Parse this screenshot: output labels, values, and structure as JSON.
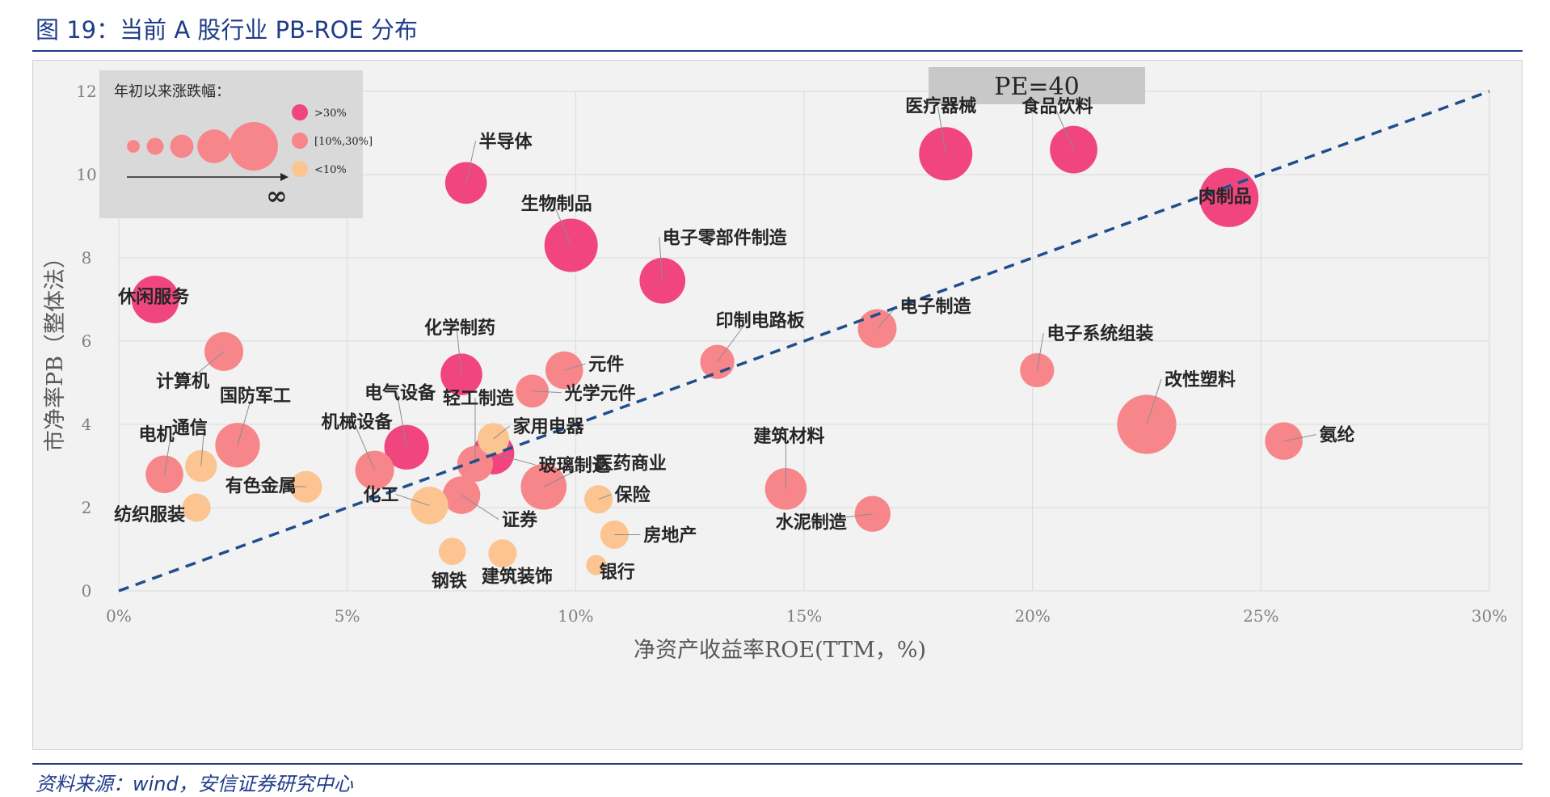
{
  "title": "图 19：当前 A 股行业 PB-ROE 分布",
  "source": "资料来源：wind，安信证券研究中心",
  "colors": {
    "gt30": "#f0457f",
    "mid": "#f7868a",
    "lt10": "#fbc490",
    "frame": "#1f3c88",
    "pe_line": "#1f4e8c",
    "legend_bg": "#d9d9d9",
    "pe_box": "#c8c8c8"
  },
  "chart_data": {
    "type": "bubble",
    "xlabel": "净资产收益率ROE(TTM，%)",
    "ylabel": "市净率PB（整体法）",
    "xlim": [
      0,
      30
    ],
    "ylim": [
      0,
      12
    ],
    "xticks": [
      "0%",
      "5%",
      "10%",
      "15%",
      "20%",
      "25%",
      "30%"
    ],
    "yticks": [
      "0",
      "2",
      "4",
      "6",
      "8",
      "10",
      "12"
    ],
    "grid": true,
    "pe_line": {
      "label": "PE=40",
      "from": [
        0,
        0
      ],
      "to": [
        30,
        12
      ],
      "style": "dashed"
    },
    "legend": {
      "title": "年初以来涨跌幅：",
      "size_symbol": "∞",
      "categories": [
        {
          "key": "gt30",
          "label": ">30%"
        },
        {
          "key": "mid",
          "label": "[10%,30%]"
        },
        {
          "key": "lt10",
          "label": "<10%"
        }
      ],
      "size_scale": [
        0.15,
        0.25,
        0.4,
        0.65,
        1.0
      ]
    },
    "points": [
      {
        "name": "休闲服务",
        "x": 0.8,
        "y": 7.0,
        "size": 0.65,
        "cat": "gt30"
      },
      {
        "name": "半导体",
        "x": 7.6,
        "y": 9.8,
        "size": 0.55,
        "cat": "gt30"
      },
      {
        "name": "生物制品",
        "x": 9.9,
        "y": 8.3,
        "size": 0.75,
        "cat": "gt30"
      },
      {
        "name": "电子零部件制造",
        "x": 11.9,
        "y": 7.45,
        "size": 0.62,
        "cat": "gt30"
      },
      {
        "name": "医疗器械",
        "x": 18.1,
        "y": 10.5,
        "size": 0.75,
        "cat": "gt30"
      },
      {
        "name": "食品饮料",
        "x": 20.9,
        "y": 10.6,
        "size": 0.65,
        "cat": "gt30"
      },
      {
        "name": "肉制品",
        "x": 24.3,
        "y": 9.45,
        "size": 0.85,
        "cat": "gt30"
      },
      {
        "name": "化学制药",
        "x": 7.5,
        "y": 5.2,
        "size": 0.55,
        "cat": "gt30"
      },
      {
        "name": "电气设备",
        "x": 6.3,
        "y": 3.45,
        "size": 0.6,
        "cat": "gt30"
      },
      {
        "name": "玻璃制造",
        "x": 8.2,
        "y": 3.3,
        "size": 0.55,
        "cat": "gt30"
      },
      {
        "name": "计算机",
        "x": 2.3,
        "y": 5.75,
        "size": 0.5,
        "cat": "mid"
      },
      {
        "name": "国防军工",
        "x": 2.6,
        "y": 3.5,
        "size": 0.6,
        "cat": "mid"
      },
      {
        "name": "电机",
        "x": 1.0,
        "y": 2.8,
        "size": 0.48,
        "cat": "mid"
      },
      {
        "name": "机械设备",
        "x": 5.6,
        "y": 2.9,
        "size": 0.5,
        "cat": "mid"
      },
      {
        "name": "轻工制造",
        "x": 7.8,
        "y": 3.05,
        "size": 0.45,
        "cat": "mid"
      },
      {
        "name": "证券",
        "x": 7.5,
        "y": 2.3,
        "size": 0.48,
        "cat": "mid"
      },
      {
        "name": "医药商业",
        "x": 9.3,
        "y": 2.5,
        "size": 0.62,
        "cat": "mid"
      },
      {
        "name": "元件",
        "x": 9.75,
        "y": 5.3,
        "size": 0.48,
        "cat": "mid"
      },
      {
        "name": "光学元件",
        "x": 9.05,
        "y": 4.8,
        "size": 0.4,
        "cat": "mid"
      },
      {
        "name": "印制电路板",
        "x": 13.1,
        "y": 5.5,
        "size": 0.42,
        "cat": "mid"
      },
      {
        "name": "电子制造",
        "x": 16.6,
        "y": 6.3,
        "size": 0.5,
        "cat": "mid"
      },
      {
        "name": "电子系统组装",
        "x": 20.1,
        "y": 5.3,
        "size": 0.42,
        "cat": "mid"
      },
      {
        "name": "改性塑料",
        "x": 22.5,
        "y": 4.0,
        "size": 0.85,
        "cat": "mid"
      },
      {
        "name": "氨纶",
        "x": 25.5,
        "y": 3.6,
        "size": 0.48,
        "cat": "mid"
      },
      {
        "name": "建筑材料",
        "x": 14.6,
        "y": 2.45,
        "size": 0.55,
        "cat": "mid"
      },
      {
        "name": "水泥制造",
        "x": 16.5,
        "y": 1.85,
        "size": 0.45,
        "cat": "mid"
      },
      {
        "name": "通信",
        "x": 1.8,
        "y": 3.0,
        "size": 0.38,
        "cat": "lt10"
      },
      {
        "name": "有色金属",
        "x": 4.1,
        "y": 2.5,
        "size": 0.38,
        "cat": "lt10"
      },
      {
        "name": "纺织服装",
        "x": 1.7,
        "y": 2.0,
        "size": 0.32,
        "cat": "lt10"
      },
      {
        "name": "化工",
        "x": 6.8,
        "y": 2.05,
        "size": 0.48,
        "cat": "lt10"
      },
      {
        "name": "家用电器",
        "x": 8.2,
        "y": 3.65,
        "size": 0.38,
        "cat": "lt10"
      },
      {
        "name": "保险",
        "x": 10.5,
        "y": 2.2,
        "size": 0.32,
        "cat": "lt10"
      },
      {
        "name": "房地产",
        "x": 10.85,
        "y": 1.35,
        "size": 0.32,
        "cat": "lt10"
      },
      {
        "name": "钢铁",
        "x": 7.3,
        "y": 0.95,
        "size": 0.3,
        "cat": "lt10"
      },
      {
        "name": "建筑装饰",
        "x": 8.4,
        "y": 0.9,
        "size": 0.32,
        "cat": "lt10"
      },
      {
        "name": "银行",
        "x": 10.45,
        "y": 0.62,
        "size": 0.18,
        "cat": "lt10"
      }
    ]
  }
}
